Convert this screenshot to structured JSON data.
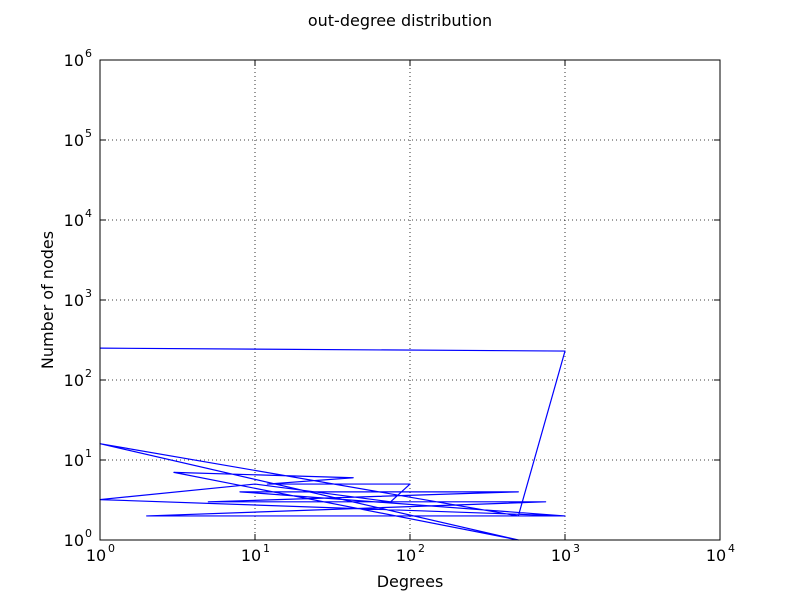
{
  "chart_data": {
    "type": "line",
    "title": "out-degree distribution",
    "xlabel": "Degrees",
    "ylabel": "Number of nodes",
    "xscale": "log",
    "yscale": "log",
    "xlim": [
      1,
      10000
    ],
    "ylim": [
      1,
      1000000
    ],
    "x_ticks": [
      {
        "base": "10",
        "exp": "0"
      },
      {
        "base": "10",
        "exp": "1"
      },
      {
        "base": "10",
        "exp": "2"
      },
      {
        "base": "10",
        "exp": "3"
      },
      {
        "base": "10",
        "exp": "4"
      }
    ],
    "y_ticks": [
      {
        "base": "10",
        "exp": "0"
      },
      {
        "base": "10",
        "exp": "1"
      },
      {
        "base": "10",
        "exp": "2"
      },
      {
        "base": "10",
        "exp": "3"
      },
      {
        "base": "10",
        "exp": "4"
      },
      {
        "base": "10",
        "exp": "5"
      },
      {
        "base": "10",
        "exp": "6"
      }
    ],
    "grid": true,
    "series": [
      {
        "color": "#0000ff",
        "x": [
          1,
          1000,
          500,
          1,
          500,
          3,
          43,
          12,
          100,
          75,
          10,
          1,
          1000,
          2,
          750,
          5,
          500,
          8,
          1000
        ],
        "y": [
          250,
          230,
          2,
          16,
          1,
          7,
          6,
          5,
          5,
          3,
          5,
          3.2,
          2,
          2,
          3,
          3,
          4,
          4,
          2
        ]
      }
    ]
  }
}
